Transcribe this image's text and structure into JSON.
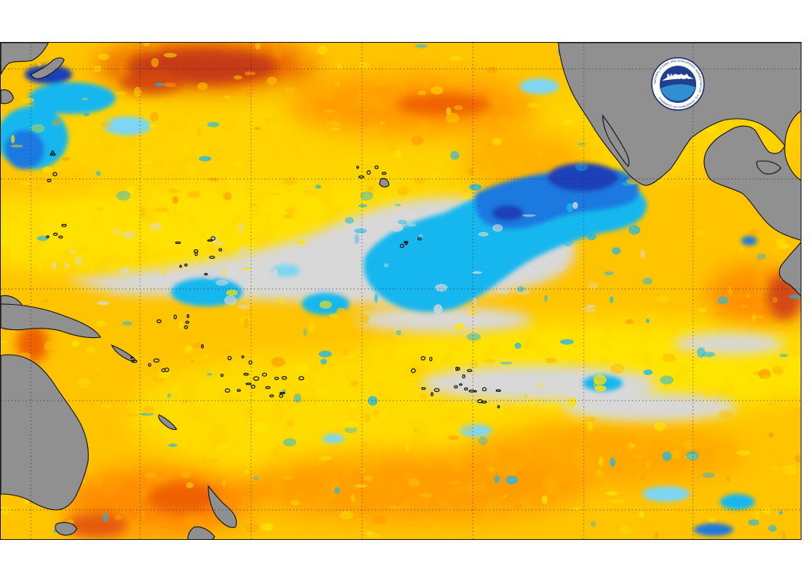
{
  "figure": {
    "kind": "sea-surface-temperature-anomaly-map",
    "region": "Tropical Pacific Ocean",
    "projection": "equirectangular",
    "graticule": "dotted"
  },
  "logo": {
    "name": "noaa-logo",
    "wordmark": "NOAA",
    "ring_text": "NATIONAL OCEANIC AND ATMOSPHERIC ADMINISTRATION · U.S. DEPARTMENT OF COMMERCE",
    "colors": {
      "ring": "#ffffff",
      "outline": "#1c2f6b",
      "sky": "#1f3f8f",
      "water": "#2f8fd0",
      "bird": "#ffffff"
    }
  },
  "palette": {
    "land": "#909090",
    "coast": "#151515",
    "neutral": "#d8d8d8",
    "warm_1": "#ffe400",
    "warm_2": "#ffc000",
    "warm_3": "#ff9c00",
    "warm_4": "#ee6100",
    "warm_5": "#c43a12",
    "cool_1": "#7ed6f2",
    "cool_2": "#19b7ef",
    "cool_3": "#1a79e0",
    "cool_4": "#1c3fb8"
  }
}
